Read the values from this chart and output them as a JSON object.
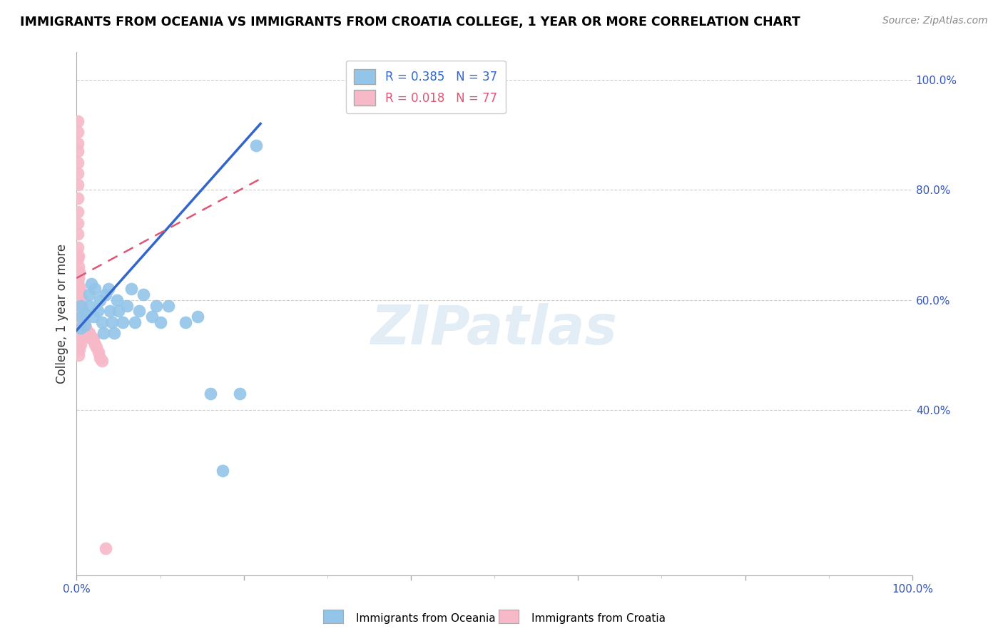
{
  "title": "IMMIGRANTS FROM OCEANIA VS IMMIGRANTS FROM CROATIA COLLEGE, 1 YEAR OR MORE CORRELATION CHART",
  "source": "Source: ZipAtlas.com",
  "ylabel": "College, 1 year or more",
  "ylabel_right_labels": [
    "40.0%",
    "60.0%",
    "80.0%",
    "100.0%"
  ],
  "ylabel_right_positions": [
    0.4,
    0.6,
    0.8,
    1.0
  ],
  "watermark": "ZIPatlas",
  "legend_blue_r": "R = 0.385",
  "legend_blue_n": "N = 37",
  "legend_pink_r": "R = 0.018",
  "legend_pink_n": "N = 77",
  "legend_label_blue": "Immigrants from Oceania",
  "legend_label_pink": "Immigrants from Croatia",
  "blue_color": "#92c5e8",
  "pink_color": "#f7b8c8",
  "trendline_blue_color": "#3366cc",
  "trendline_pink_color": "#e05575",
  "grid_color": "#cccccc",
  "background_color": "#ffffff",
  "blue_x": [
    0.005,
    0.005,
    0.005,
    0.01,
    0.01,
    0.015,
    0.015,
    0.018,
    0.02,
    0.022,
    0.025,
    0.028,
    0.03,
    0.032,
    0.035,
    0.038,
    0.04,
    0.042,
    0.045,
    0.048,
    0.05,
    0.055,
    0.06,
    0.065,
    0.07,
    0.075,
    0.08,
    0.09,
    0.095,
    0.1,
    0.11,
    0.13,
    0.145,
    0.16,
    0.175,
    0.195,
    0.215
  ],
  "blue_y": [
    0.55,
    0.57,
    0.59,
    0.555,
    0.575,
    0.59,
    0.61,
    0.63,
    0.57,
    0.62,
    0.58,
    0.6,
    0.56,
    0.54,
    0.61,
    0.62,
    0.58,
    0.56,
    0.54,
    0.6,
    0.58,
    0.56,
    0.59,
    0.62,
    0.56,
    0.58,
    0.61,
    0.57,
    0.59,
    0.56,
    0.59,
    0.56,
    0.57,
    0.43,
    0.29,
    0.43,
    0.88
  ],
  "pink_x": [
    0.001,
    0.001,
    0.001,
    0.001,
    0.001,
    0.001,
    0.001,
    0.001,
    0.001,
    0.001,
    0.001,
    0.001,
    0.001,
    0.001,
    0.001,
    0.001,
    0.001,
    0.001,
    0.001,
    0.001,
    0.001,
    0.001,
    0.001,
    0.002,
    0.002,
    0.002,
    0.002,
    0.002,
    0.002,
    0.002,
    0.002,
    0.002,
    0.002,
    0.003,
    0.003,
    0.003,
    0.003,
    0.003,
    0.003,
    0.003,
    0.004,
    0.004,
    0.004,
    0.004,
    0.004,
    0.005,
    0.005,
    0.005,
    0.005,
    0.005,
    0.006,
    0.006,
    0.006,
    0.007,
    0.007,
    0.008,
    0.008,
    0.009,
    0.009,
    0.01,
    0.01,
    0.011,
    0.012,
    0.013,
    0.014,
    0.015,
    0.016,
    0.017,
    0.018,
    0.019,
    0.02,
    0.022,
    0.024,
    0.026,
    0.028,
    0.03,
    0.035
  ],
  "pink_y": [
    0.925,
    0.905,
    0.885,
    0.87,
    0.85,
    0.83,
    0.81,
    0.785,
    0.76,
    0.74,
    0.72,
    0.695,
    0.675,
    0.65,
    0.635,
    0.62,
    0.605,
    0.59,
    0.575,
    0.56,
    0.545,
    0.53,
    0.515,
    0.68,
    0.66,
    0.64,
    0.62,
    0.6,
    0.58,
    0.56,
    0.54,
    0.52,
    0.5,
    0.65,
    0.625,
    0.6,
    0.575,
    0.55,
    0.53,
    0.51,
    0.62,
    0.595,
    0.575,
    0.555,
    0.53,
    0.605,
    0.58,
    0.56,
    0.54,
    0.52,
    0.59,
    0.565,
    0.545,
    0.575,
    0.55,
    0.565,
    0.545,
    0.56,
    0.54,
    0.555,
    0.535,
    0.55,
    0.545,
    0.54,
    0.535,
    0.54,
    0.535,
    0.535,
    0.53,
    0.53,
    0.53,
    0.52,
    0.515,
    0.505,
    0.495,
    0.49,
    0.15
  ],
  "xlim": [
    0.0,
    0.22
  ],
  "ylim": [
    0.1,
    1.05
  ],
  "blue_trendline_x": [
    0.0,
    0.22
  ],
  "blue_trendline_y": [
    0.545,
    0.92
  ],
  "pink_trendline_x": [
    0.0,
    0.22
  ],
  "pink_trendline_y": [
    0.64,
    0.82
  ]
}
